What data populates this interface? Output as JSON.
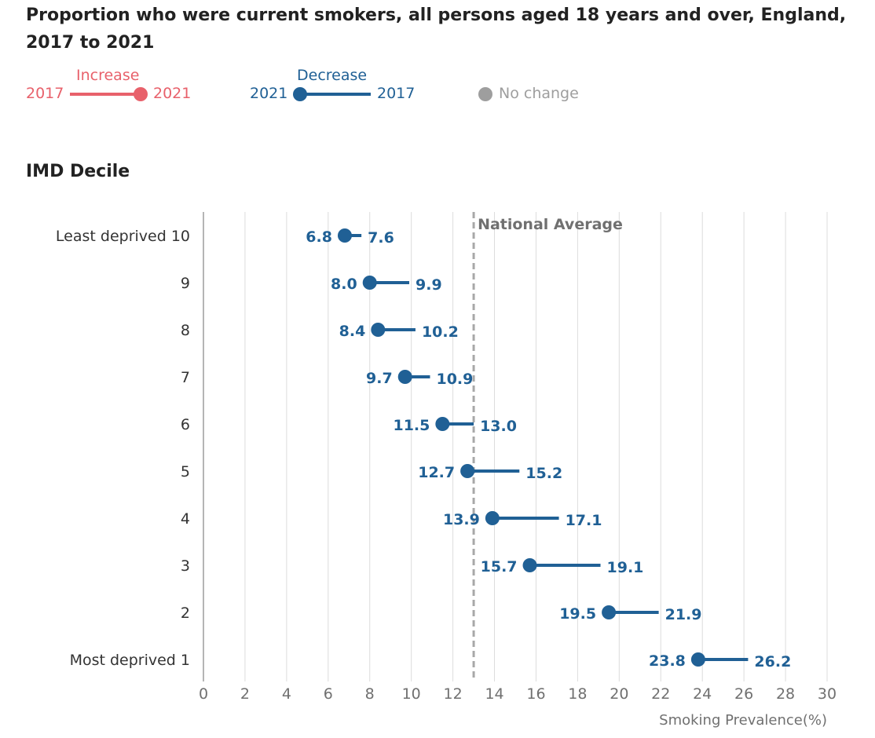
{
  "title": "Proportion who were current smokers, all persons aged 18 years and over, England, 2017 to 2021",
  "legend": {
    "increase": {
      "label": "Increase",
      "from": "2017",
      "to": "2021",
      "color": "#e8616b"
    },
    "decrease": {
      "label": "Decrease",
      "from": "2021",
      "to": "2017",
      "color": "#206095"
    },
    "no_change": {
      "label": "No change",
      "color": "#9e9e9e"
    }
  },
  "y_axis_title": "IMD Decile",
  "reference_line": {
    "label": "National Average",
    "value": 13.0
  },
  "chart_data": {
    "type": "dumbbell",
    "title": "Proportion who were current smokers, all persons aged 18 years and over, England, 2017 to 2021",
    "xlabel": "Smoking Prevalence(%)",
    "ylabel": "IMD Decile",
    "xlim": [
      0,
      30
    ],
    "xticks": [
      0,
      2,
      4,
      6,
      8,
      10,
      12,
      14,
      16,
      18,
      20,
      22,
      24,
      26,
      28,
      30
    ],
    "grid": true,
    "categories": [
      "Least deprived 10",
      "9",
      "8",
      "7",
      "6",
      "5",
      "4",
      "3",
      "2",
      "Most deprived 1"
    ],
    "series": [
      {
        "name": "2017",
        "values": [
          7.6,
          9.9,
          10.2,
          10.9,
          13.0,
          15.2,
          17.1,
          19.1,
          21.9,
          26.2
        ]
      },
      {
        "name": "2021",
        "values": [
          6.8,
          8.0,
          8.4,
          9.7,
          11.5,
          12.7,
          13.9,
          15.7,
          19.5,
          23.8
        ]
      }
    ]
  }
}
